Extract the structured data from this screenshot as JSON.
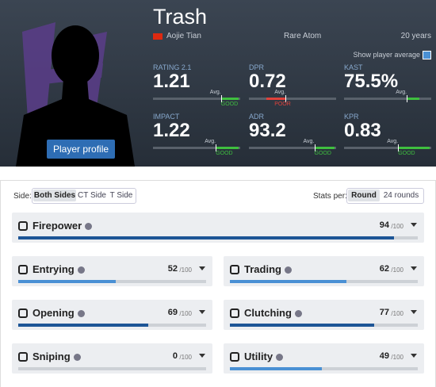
{
  "player": {
    "name": "Trash",
    "real_name": "Aojie Tian",
    "team": "Rare Atom",
    "age": "20 years",
    "show_average": "Show player average",
    "profile_button": "Player profile"
  },
  "summary": [
    {
      "label": "RATING 2.1",
      "value": "1.21",
      "avg": "Avg.",
      "verdict": "GOOD"
    },
    {
      "label": "DPR",
      "value": "0.72",
      "avg": "Avg.",
      "verdict": "POOR"
    },
    {
      "label": "KAST",
      "value": "75.5%",
      "avg": "Avg."
    },
    {
      "label": "IMPACT",
      "value": "1.22",
      "avg": "Avg.",
      "verdict": "GOOD"
    },
    {
      "label": "ADR",
      "value": "93.2",
      "avg": "Avg.",
      "verdict": "GOOD"
    },
    {
      "label": "KPR",
      "value": "0.83",
      "avg": "Avg.",
      "verdict": "GOOD"
    }
  ],
  "side": {
    "label": "Side:",
    "options": [
      "Both Sides",
      "CT Side",
      "T Side"
    ]
  },
  "stats_per": {
    "label": "Stats per:",
    "options": [
      "Round",
      "24 rounds"
    ]
  },
  "stats": {
    "scale": {
      "value": 100,
      "label": "/100"
    },
    "categories": [
      {
        "name": "Firepower",
        "score": 94,
        "color": "#1d5596"
      },
      {
        "name": "Entrying",
        "score": 52,
        "color": "#4a90d4"
      },
      {
        "name": "Trading",
        "score": 62,
        "color": "#4a90d4"
      },
      {
        "name": "Opening",
        "score": 69,
        "color": "#1d5596"
      },
      {
        "name": "Clutching",
        "score": 77,
        "color": "#1d5596"
      },
      {
        "name": "Sniping",
        "score": 0,
        "color": "#4a90d4"
      },
      {
        "name": "Utility",
        "score": 49,
        "color": "#4a90d4"
      }
    ]
  }
}
